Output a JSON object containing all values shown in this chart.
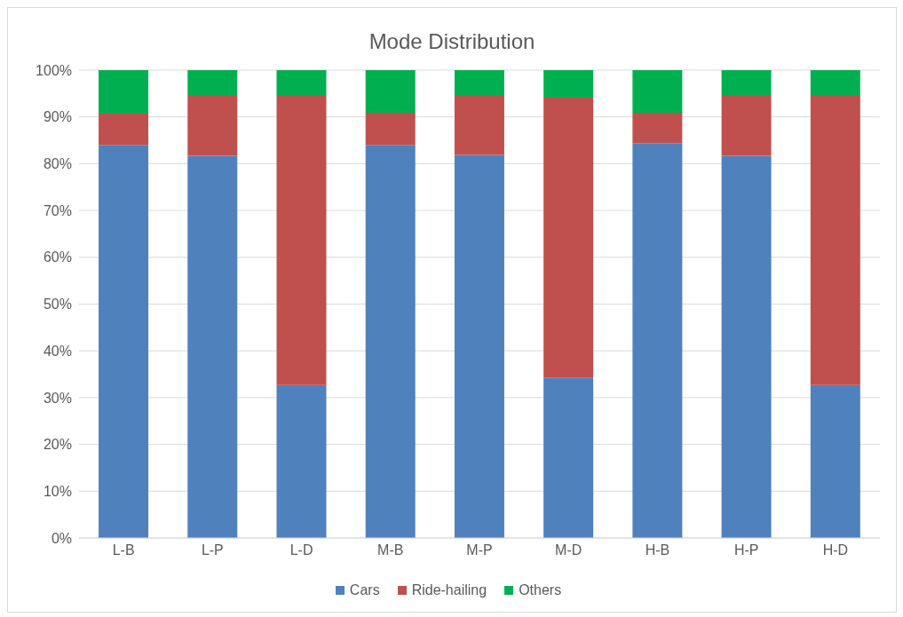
{
  "chart_data": {
    "type": "bar",
    "title": "Mode Distribution",
    "stacked": true,
    "categories": [
      "L-B",
      "L-P",
      "L-D",
      "M-B",
      "M-P",
      "M-D",
      "H-B",
      "H-P",
      "H-D"
    ],
    "series": [
      {
        "name": "Cars",
        "color": "#4f81bd",
        "values": [
          84.0,
          81.7,
          32.7,
          84.0,
          81.9,
          34.3,
          84.4,
          81.7,
          32.7
        ]
      },
      {
        "name": "Ride-hailing",
        "color": "#c0504d",
        "values": [
          6.7,
          12.8,
          61.8,
          6.9,
          12.6,
          59.8,
          6.5,
          13.0,
          61.8
        ]
      },
      {
        "name": "Others",
        "color": "#00b050",
        "values": [
          9.3,
          5.5,
          5.5,
          9.1,
          5.5,
          5.9,
          9.1,
          5.3,
          5.5
        ]
      }
    ],
    "ylim": [
      0,
      100
    ],
    "yticks": [
      {
        "value": 0,
        "label": "0%"
      },
      {
        "value": 10,
        "label": "10%"
      },
      {
        "value": 20,
        "label": "20%"
      },
      {
        "value": 30,
        "label": "30%"
      },
      {
        "value": 40,
        "label": "40%"
      },
      {
        "value": 50,
        "label": "50%"
      },
      {
        "value": 60,
        "label": "60%"
      },
      {
        "value": 70,
        "label": "70%"
      },
      {
        "value": 80,
        "label": "80%"
      },
      {
        "value": 90,
        "label": "90%"
      },
      {
        "value": 100,
        "label": "100%"
      }
    ],
    "grid": "y",
    "legend": "bottom"
  }
}
